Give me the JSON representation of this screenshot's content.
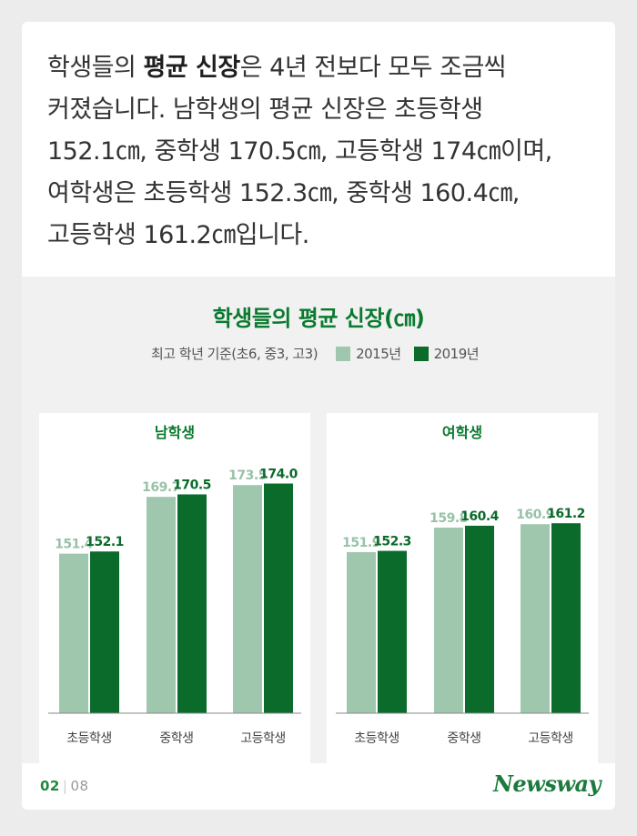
{
  "intro": {
    "line1_a": "학생들의 ",
    "line1_bold": "평균 신장",
    "line1_b": "은 4년 전보다 모두 조금씩",
    "line2": "커졌습니다. 남학생의 평균 신장은 초등학생",
    "line3": "152.1㎝, 중학생 170.5㎝, 고등학생 174㎝이며,",
    "line4": "여학생은 초등학생 152.3㎝, 중학생 160.4㎝,",
    "line5": "고등학생 161.2㎝입니다."
  },
  "colors": {
    "series_2015": "#9ec7ad",
    "series_2019": "#0a6b2a",
    "title": "#0a7a2f",
    "value_2015": "#98c2a8",
    "value_2019": "#0a6b2a"
  },
  "legend": {
    "note": "최고 학년 기준(초6, 중3, 고3)",
    "s2015": "2015년",
    "s2019": "2019년"
  },
  "chart_data": [
    {
      "type": "bar",
      "title": "남학생",
      "categories": [
        "초등학생",
        "중학생",
        "고등학생"
      ],
      "series": [
        {
          "name": "2015년",
          "values": [
            151.4,
            169.7,
            173.5
          ]
        },
        {
          "name": "2019년",
          "values": [
            152.1,
            170.5,
            174.0
          ]
        }
      ],
      "value_labels": [
        [
          "151.4",
          "169.7",
          "173.5"
        ],
        [
          "152.1",
          "170.5",
          "174.0"
        ]
      ]
    },
    {
      "type": "bar",
      "title": "여학생",
      "categories": [
        "초등학생",
        "중학생",
        "고등학생"
      ],
      "series": [
        {
          "name": "2015년",
          "values": [
            151.9,
            159.8,
            160.9
          ]
        },
        {
          "name": "2019년",
          "values": [
            152.3,
            160.4,
            161.2
          ]
        }
      ],
      "value_labels": [
        [
          "151.9",
          "159.8",
          "160.9"
        ],
        [
          "152.3",
          "160.4",
          "161.2"
        ]
      ]
    }
  ],
  "chart_title": "학생들의 평균 신장(㎝)",
  "footer": {
    "page_current": "02",
    "page_total": "08",
    "logo": "Newsway"
  }
}
